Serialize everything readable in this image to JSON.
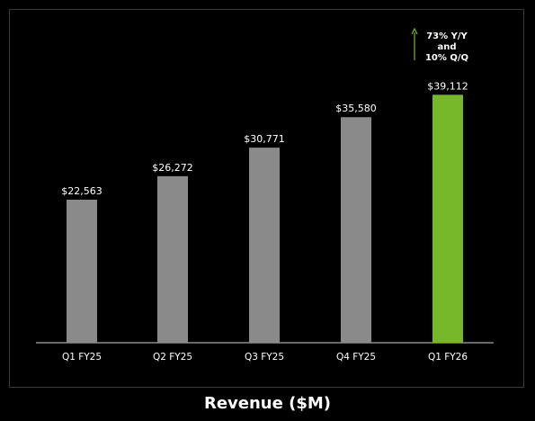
{
  "chart_data": {
    "type": "bar",
    "title": "Revenue ($M)",
    "categories": [
      "Q1 FY25",
      "Q2 FY25",
      "Q3 FY25",
      "Q4 FY25",
      "Q1 FY26"
    ],
    "values": [
      22563,
      26272,
      30771,
      35580,
      39112
    ],
    "value_labels": [
      "$22,563",
      "$26,272",
      "$30,771",
      "$35,580",
      "$39,112"
    ],
    "ylim": [
      0,
      42000
    ],
    "grid": false,
    "annotation": {
      "lines": [
        "73% Y/Y",
        "and",
        "10% Q/Q"
      ],
      "arrow": "up"
    },
    "colors": {
      "bar": "#8a8a8a",
      "highlight_bar": "#76b82a",
      "highlight_index": 4,
      "axis": "#8a8a8a",
      "text": "#ffffff",
      "arrow": "#76b82a"
    }
  }
}
